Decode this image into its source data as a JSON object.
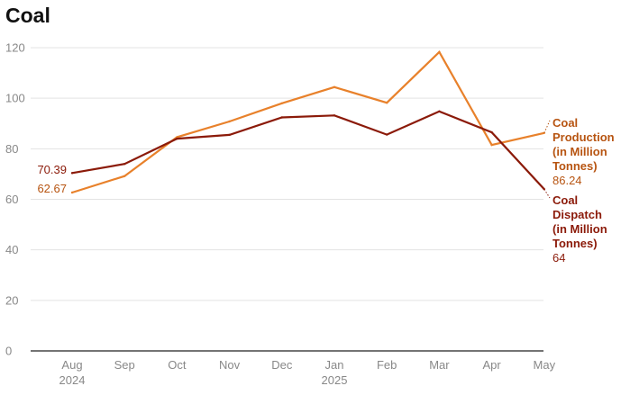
{
  "chart_data": {
    "type": "line",
    "title": "Coal",
    "categories": [
      "Aug",
      "Sep",
      "Oct",
      "Nov",
      "Dec",
      "Jan",
      "Feb",
      "Mar",
      "Apr",
      "May"
    ],
    "year_labels": [
      "2024",
      "",
      "",
      "",
      "",
      "2025",
      "",
      "",
      "",
      ""
    ],
    "ylim": [
      0,
      120
    ],
    "yticks": [
      0,
      20,
      40,
      60,
      80,
      100,
      120
    ],
    "grid": true,
    "series": [
      {
        "name": "Coal Production (in Million Tonnes)",
        "name_lines": [
          "Coal",
          "Production",
          "(in Million",
          "Tonnes)"
        ],
        "color": "#e8812b",
        "label_color": "#b75411",
        "values": [
          62.67,
          69.2,
          84.6,
          90.8,
          98.0,
          104.4,
          98.2,
          118.3,
          81.5,
          86.24
        ],
        "start_label": "62.67",
        "end_label": "86.24"
      },
      {
        "name": "Coal Dispatch (in Million Tonnes)",
        "name_lines": [
          "Coal",
          "Dispatch",
          "(in Million",
          "Tonnes)"
        ],
        "color": "#8b1a09",
        "label_color": "#8b1a09",
        "values": [
          70.39,
          74.0,
          84.0,
          85.5,
          92.4,
          93.2,
          85.6,
          94.8,
          86.5,
          64
        ],
        "start_label": "70.39",
        "end_label": "64"
      }
    ]
  }
}
